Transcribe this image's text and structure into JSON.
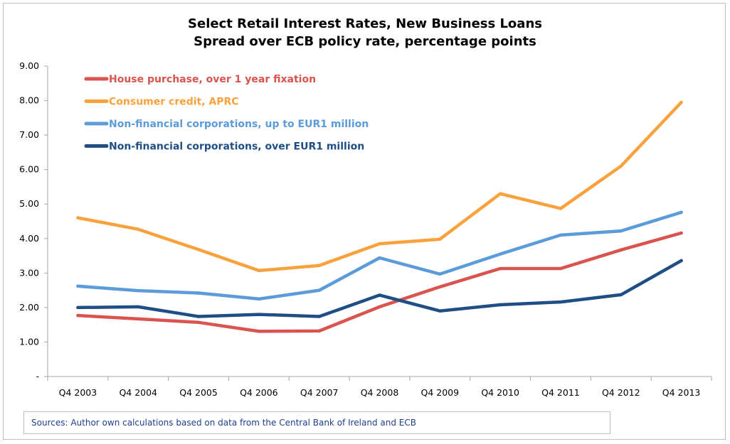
{
  "chart_data": {
    "type": "line",
    "title": [
      "Select Retail Interest Rates, New Business Loans",
      "Spread over ECB policy rate, percentage points"
    ],
    "xlabel": "",
    "ylabel": "",
    "categories": [
      "Q4 2003",
      "Q4 2004",
      "Q4 2005",
      "Q4 2006",
      "Q4 2007",
      "Q4 2008",
      "Q4 2009",
      "Q4 2010",
      "Q4 2011",
      "Q4 2012",
      "Q4 2013"
    ],
    "ylim": [
      0,
      9
    ],
    "yticks": [
      "-",
      "1.00",
      "2.00",
      "3.00",
      "4.00",
      "5.00",
      "6.00",
      "7.00",
      "8.00",
      "9.00"
    ],
    "grid": false,
    "legend_position": "top-left",
    "series": [
      {
        "name": "House purchase, over 1 year fixation",
        "color": "#d9534f",
        "values": [
          1.77,
          1.67,
          1.57,
          1.31,
          1.32,
          2.02,
          2.6,
          3.13,
          3.13,
          3.67,
          4.16
        ]
      },
      {
        "name": "Consumer credit, APRC",
        "color": "#f9a23d",
        "values": [
          4.6,
          4.27,
          3.68,
          3.07,
          3.22,
          3.85,
          3.98,
          5.3,
          4.87,
          6.1,
          7.95
        ]
      },
      {
        "name": "Non-financial corporations, up to EUR1 million",
        "color": "#5b9bd9",
        "values": [
          2.62,
          2.49,
          2.42,
          2.25,
          2.5,
          3.44,
          2.97,
          3.55,
          4.1,
          4.22,
          4.76
        ]
      },
      {
        "name": "Non-financial corporations, over EUR1 million",
        "color": "#1f4e85",
        "values": [
          2.0,
          2.02,
          1.74,
          1.8,
          1.74,
          2.36,
          1.9,
          2.08,
          2.16,
          2.37,
          3.36
        ]
      }
    ]
  },
  "sources": "Sources: Author own calculations based on data from the Central Bank of Ireland and ECB"
}
